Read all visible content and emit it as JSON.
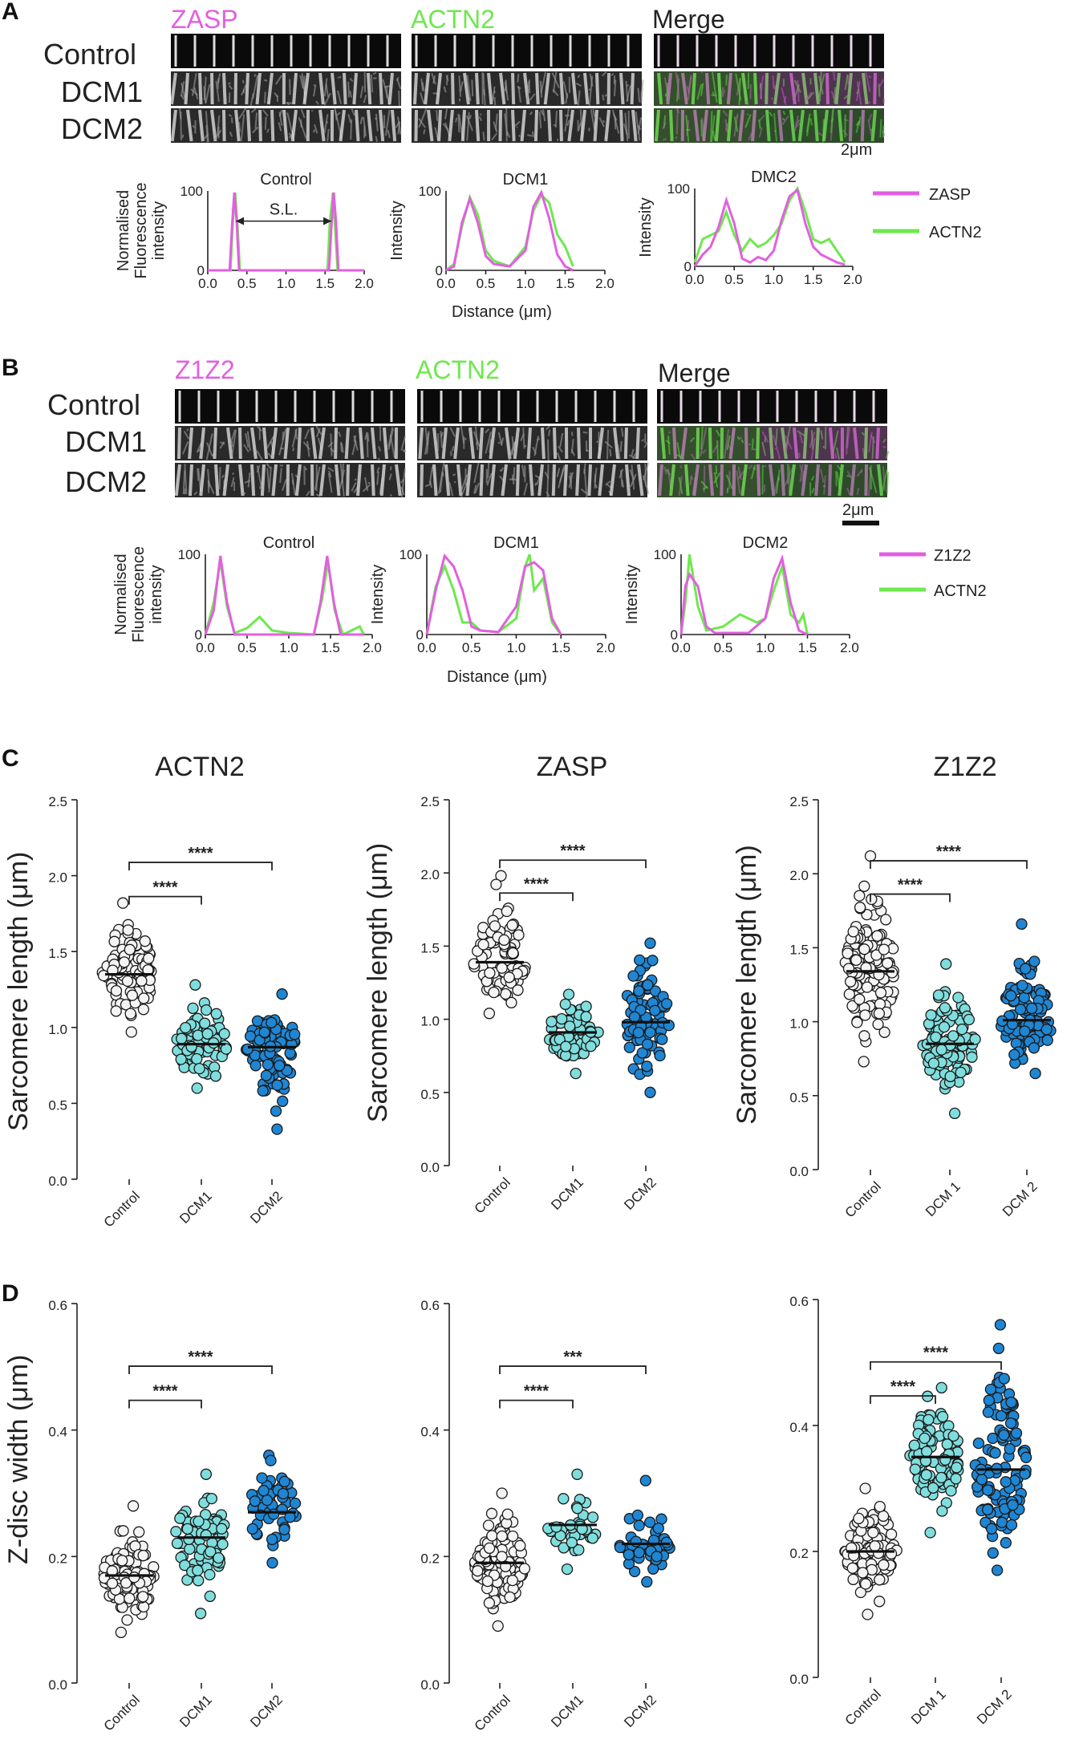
{
  "colors": {
    "zasp": "#e25fe0",
    "actn2": "#6ee84e",
    "z1z2": "#e25fe0",
    "control": "#f4f4f4",
    "dcm1": "#7fdedd",
    "dcm2": "#1f86d4",
    "ink": "#222222"
  },
  "panels": {
    "A": {
      "letter": "A",
      "channels": [
        "ZASP",
        "ACTN2",
        "Merge"
      ],
      "rows": [
        "Control",
        "DCM1",
        "DCM2"
      ],
      "scale": "2μm",
      "profiles": [
        {
          "title": "Control",
          "ylabel1": "Normalised",
          "ylabel2": "Fluorescence",
          "ylabel3": "intensity",
          "annotation": "S.L.",
          "xticks": [
            "0.0",
            "0.5",
            "1.0",
            "1.5",
            "2.0"
          ],
          "ymax": "100",
          "ymin": "0",
          "zasp": [
            [
              0,
              0
            ],
            [
              0.28,
              0
            ],
            [
              0.31,
              55
            ],
            [
              0.34,
              98
            ],
            [
              0.37,
              60
            ],
            [
              0.4,
              0
            ],
            [
              1.55,
              0
            ],
            [
              1.58,
              55
            ],
            [
              1.61,
              98
            ],
            [
              1.64,
              60
            ],
            [
              1.67,
              0
            ],
            [
              2.0,
              0
            ]
          ],
          "actn2": [
            [
              0,
              0
            ],
            [
              0.29,
              0
            ],
            [
              0.32,
              60
            ],
            [
              0.35,
              98
            ],
            [
              0.38,
              55
            ],
            [
              0.41,
              0
            ],
            [
              1.53,
              0
            ],
            [
              1.56,
              60
            ],
            [
              1.6,
              98
            ],
            [
              1.63,
              50
            ],
            [
              1.66,
              0
            ],
            [
              2.0,
              0
            ]
          ]
        },
        {
          "title": "DCM1",
          "ylabel1": "Intensity",
          "xticks": [
            "0.0",
            "0.5",
            "1.0",
            "1.5",
            "2.0"
          ],
          "ymax": "100",
          "ymin": "0",
          "zasp": [
            [
              0,
              0
            ],
            [
              0.1,
              5
            ],
            [
              0.2,
              60
            ],
            [
              0.3,
              90
            ],
            [
              0.4,
              60
            ],
            [
              0.5,
              18
            ],
            [
              0.6,
              8
            ],
            [
              0.8,
              5
            ],
            [
              1.0,
              25
            ],
            [
              1.1,
              80
            ],
            [
              1.2,
              98
            ],
            [
              1.3,
              65
            ],
            [
              1.4,
              20
            ],
            [
              1.5,
              5
            ],
            [
              1.6,
              0
            ]
          ],
          "actn2": [
            [
              0,
              0
            ],
            [
              0.1,
              8
            ],
            [
              0.2,
              55
            ],
            [
              0.3,
              92
            ],
            [
              0.4,
              70
            ],
            [
              0.5,
              25
            ],
            [
              0.6,
              12
            ],
            [
              0.8,
              5
            ],
            [
              1.0,
              30
            ],
            [
              1.1,
              75
            ],
            [
              1.2,
              95
            ],
            [
              1.3,
              85
            ],
            [
              1.4,
              45
            ],
            [
              1.5,
              30
            ],
            [
              1.6,
              5
            ]
          ]
        },
        {
          "title": "DMC2",
          "ylabel1": "Intensity",
          "xticks": [
            "0.0",
            "0.5",
            "1.0",
            "1.5",
            "2.0"
          ],
          "ymax": "100",
          "ymin": "0",
          "zasp": [
            [
              0,
              0
            ],
            [
              0.1,
              15
            ],
            [
              0.2,
              25
            ],
            [
              0.3,
              50
            ],
            [
              0.4,
              85
            ],
            [
              0.5,
              55
            ],
            [
              0.6,
              10
            ],
            [
              0.7,
              5
            ],
            [
              0.8,
              12
            ],
            [
              0.9,
              8
            ],
            [
              1.0,
              20
            ],
            [
              1.1,
              60
            ],
            [
              1.2,
              90
            ],
            [
              1.3,
              98
            ],
            [
              1.4,
              55
            ],
            [
              1.5,
              25
            ],
            [
              1.6,
              15
            ],
            [
              1.7,
              10
            ],
            [
              1.8,
              5
            ],
            [
              1.9,
              2
            ]
          ],
          "actn2": [
            [
              0,
              5
            ],
            [
              0.1,
              35
            ],
            [
              0.2,
              40
            ],
            [
              0.3,
              45
            ],
            [
              0.4,
              70
            ],
            [
              0.5,
              40
            ],
            [
              0.6,
              20
            ],
            [
              0.7,
              35
            ],
            [
              0.8,
              25
            ],
            [
              0.9,
              30
            ],
            [
              1.0,
              40
            ],
            [
              1.1,
              55
            ],
            [
              1.2,
              85
            ],
            [
              1.3,
              100
            ],
            [
              1.4,
              70
            ],
            [
              1.5,
              35
            ],
            [
              1.6,
              30
            ],
            [
              1.7,
              35
            ],
            [
              1.8,
              20
            ],
            [
              1.9,
              5
            ]
          ]
        }
      ],
      "legend": [
        "ZASP",
        "ACTN2"
      ],
      "xlabel": "Distance (μm)"
    },
    "B": {
      "letter": "B",
      "channels": [
        "Z1Z2",
        "ACTN2",
        "Merge"
      ],
      "rows": [
        "Control",
        "DCM1",
        "DCM2"
      ],
      "scale": "2μm",
      "profiles": [
        {
          "title": "Control",
          "ylabel1": "Normalised",
          "ylabel2": "Fluorescence",
          "ylabel3": "intensity",
          "xticks": [
            "0.0",
            "0.5",
            "1.0",
            "1.5",
            "2.0"
          ],
          "ymax": "100",
          "ymin": "0",
          "zasp": [
            [
              0,
              0
            ],
            [
              0.1,
              30
            ],
            [
              0.18,
              98
            ],
            [
              0.26,
              40
            ],
            [
              0.35,
              0
            ],
            [
              1.3,
              0
            ],
            [
              1.38,
              40
            ],
            [
              1.46,
              98
            ],
            [
              1.54,
              40
            ],
            [
              1.62,
              0
            ],
            [
              1.9,
              0
            ]
          ],
          "actn2": [
            [
              0,
              0
            ],
            [
              0.1,
              40
            ],
            [
              0.18,
              92
            ],
            [
              0.26,
              35
            ],
            [
              0.35,
              2
            ],
            [
              0.5,
              8
            ],
            [
              0.65,
              22
            ],
            [
              0.8,
              5
            ],
            [
              1.0,
              2
            ],
            [
              1.3,
              0
            ],
            [
              1.4,
              45
            ],
            [
              1.47,
              90
            ],
            [
              1.55,
              30
            ],
            [
              1.65,
              0
            ],
            [
              1.85,
              10
            ],
            [
              1.9,
              0
            ]
          ]
        },
        {
          "title": "DCM1",
          "ylabel1": "Intensity",
          "xticks": [
            "0.0",
            "0.5",
            "1.0",
            "1.5",
            "2.0"
          ],
          "ymax": "100",
          "ymin": "0",
          "zasp": [
            [
              0,
              0
            ],
            [
              0.1,
              55
            ],
            [
              0.2,
              98
            ],
            [
              0.3,
              85
            ],
            [
              0.4,
              55
            ],
            [
              0.5,
              10
            ],
            [
              0.6,
              5
            ],
            [
              0.8,
              3
            ],
            [
              1.0,
              35
            ],
            [
              1.1,
              85
            ],
            [
              1.2,
              90
            ],
            [
              1.3,
              80
            ],
            [
              1.4,
              20
            ],
            [
              1.5,
              0
            ]
          ],
          "actn2": [
            [
              0,
              0
            ],
            [
              0.1,
              60
            ],
            [
              0.2,
              85
            ],
            [
              0.3,
              55
            ],
            [
              0.4,
              15
            ],
            [
              0.5,
              15
            ],
            [
              0.6,
              5
            ],
            [
              0.8,
              3
            ],
            [
              1.0,
              20
            ],
            [
              1.1,
              85
            ],
            [
              1.15,
              100
            ],
            [
              1.2,
              55
            ],
            [
              1.3,
              70
            ],
            [
              1.4,
              15
            ],
            [
              1.5,
              0
            ]
          ]
        },
        {
          "title": "DCM2",
          "ylabel1": "Intensity",
          "xticks": [
            "0.0",
            "0.5",
            "1.0",
            "1.5",
            "2.0"
          ],
          "ymax": "100",
          "ymin": "0",
          "zasp": [
            [
              0,
              0
            ],
            [
              0.05,
              60
            ],
            [
              0.1,
              75
            ],
            [
              0.2,
              60
            ],
            [
              0.3,
              10
            ],
            [
              0.4,
              2
            ],
            [
              0.8,
              2
            ],
            [
              1.0,
              20
            ],
            [
              1.1,
              70
            ],
            [
              1.2,
              95
            ],
            [
              1.3,
              40
            ],
            [
              1.4,
              5
            ],
            [
              1.5,
              0
            ]
          ],
          "actn2": [
            [
              0,
              0
            ],
            [
              0.05,
              40
            ],
            [
              0.1,
              100
            ],
            [
              0.2,
              35
            ],
            [
              0.3,
              5
            ],
            [
              0.5,
              10
            ],
            [
              0.7,
              25
            ],
            [
              0.9,
              15
            ],
            [
              1.0,
              20
            ],
            [
              1.1,
              55
            ],
            [
              1.2,
              85
            ],
            [
              1.3,
              25
            ],
            [
              1.4,
              15
            ],
            [
              1.45,
              25
            ],
            [
              1.5,
              0
            ]
          ]
        }
      ],
      "legend": [
        "Z1Z2",
        "ACTN2"
      ],
      "xlabel": "Distance (μm)"
    },
    "C": {
      "letter": "C",
      "ylabel": "Sarcomere length (μm)"
    },
    "D": {
      "letter": "D",
      "ylabel": "Z-disc width (μm)"
    }
  },
  "chart_data": [
    {
      "type": "scatter",
      "id": "C1",
      "title": "ACTN2",
      "ylabel": "Sarcomere length (μm)",
      "categories": [
        "Control",
        "DCM1",
        "DCM2"
      ],
      "ylim": [
        0,
        2.5
      ],
      "yticks": [
        "0.0",
        "0.5",
        "1.0",
        "1.5",
        "2.0",
        "2.5"
      ],
      "means": [
        1.35,
        0.89,
        0.87
      ],
      "spread": [
        [
          0.97,
          1.82
        ],
        [
          0.6,
          1.28
        ],
        [
          0.33,
          1.22
        ]
      ],
      "n": [
        95,
        80,
        90
      ],
      "significance": [
        {
          "from": 0,
          "to": 1,
          "label": "****"
        },
        {
          "from": 0,
          "to": 2,
          "label": "****"
        }
      ]
    },
    {
      "type": "scatter",
      "id": "C2",
      "title": "ZASP",
      "ylabel": "Sarcomere length (μm)",
      "categories": [
        "Control",
        "DCM1",
        "DCM2"
      ],
      "ylim": [
        0,
        2.5
      ],
      "yticks": [
        "0.0",
        "0.5",
        "1.0",
        "1.5",
        "2.0",
        "2.5"
      ],
      "means": [
        1.39,
        0.91,
        0.98
      ],
      "spread": [
        [
          1.04,
          1.98
        ],
        [
          0.63,
          1.17
        ],
        [
          0.5,
          1.52
        ]
      ],
      "n": [
        90,
        75,
        80
      ],
      "significance": [
        {
          "from": 0,
          "to": 1,
          "label": "****"
        },
        {
          "from": 0,
          "to": 2,
          "label": "****"
        }
      ]
    },
    {
      "type": "scatter",
      "id": "C3",
      "title": "Z1Z2",
      "ylabel": "Sarcomere length (μm)",
      "categories": [
        "Control",
        "DCM 1",
        "DCM 2"
      ],
      "ylim": [
        0,
        2.5
      ],
      "yticks": [
        "0.0",
        "0.5",
        "1.0",
        "1.5",
        "2.0",
        "2.5"
      ],
      "means": [
        1.34,
        0.85,
        1.01
      ],
      "spread": [
        [
          0.73,
          2.12
        ],
        [
          0.38,
          1.39
        ],
        [
          0.65,
          1.66
        ]
      ],
      "n": [
        120,
        110,
        110
      ],
      "significance": [
        {
          "from": 0,
          "to": 1,
          "label": "****"
        },
        {
          "from": 0,
          "to": 2,
          "label": "****"
        }
      ]
    },
    {
      "type": "scatter",
      "id": "D1",
      "ylabel": "Z-disc width (μm)",
      "categories": [
        "Control",
        "DCM1",
        "DCM2"
      ],
      "ylim": [
        0,
        0.6
      ],
      "yticks": [
        "0.0",
        "0.2",
        "0.4",
        "0.6"
      ],
      "means": [
        0.17,
        0.23,
        0.27
      ],
      "spread": [
        [
          0.08,
          0.28
        ],
        [
          0.11,
          0.33
        ],
        [
          0.19,
          0.36
        ]
      ],
      "n": [
        100,
        80,
        50
      ],
      "significance": [
        {
          "from": 0,
          "to": 1,
          "label": "****"
        },
        {
          "from": 0,
          "to": 2,
          "label": "****"
        }
      ]
    },
    {
      "type": "scatter",
      "id": "D2",
      "categories": [
        "Control",
        "DCM1",
        "DCM2"
      ],
      "ylim": [
        0,
        0.6
      ],
      "yticks": [
        "0.0",
        "0.2",
        "0.4",
        "0.6"
      ],
      "means": [
        0.19,
        0.25,
        0.22
      ],
      "spread": [
        [
          0.09,
          0.3
        ],
        [
          0.18,
          0.33
        ],
        [
          0.16,
          0.32
        ]
      ],
      "n": [
        100,
        40,
        45
      ],
      "significance": [
        {
          "from": 0,
          "to": 1,
          "label": "****"
        },
        {
          "from": 0,
          "to": 2,
          "label": "***"
        }
      ]
    },
    {
      "type": "scatter",
      "id": "D3",
      "categories": [
        "Control",
        "DCM 1",
        "DCM 2"
      ],
      "ylim": [
        0,
        0.6
      ],
      "yticks": [
        "0.0",
        "0.2",
        "0.4",
        "0.6"
      ],
      "means": [
        0.2,
        0.35,
        0.33
      ],
      "spread": [
        [
          0.1,
          0.3
        ],
        [
          0.23,
          0.46
        ],
        [
          0.17,
          0.56
        ]
      ],
      "n": [
        110,
        100,
        110
      ],
      "significance": [
        {
          "from": 0,
          "to": 1,
          "label": "****"
        },
        {
          "from": 0,
          "to": 2,
          "label": "****"
        }
      ]
    }
  ]
}
